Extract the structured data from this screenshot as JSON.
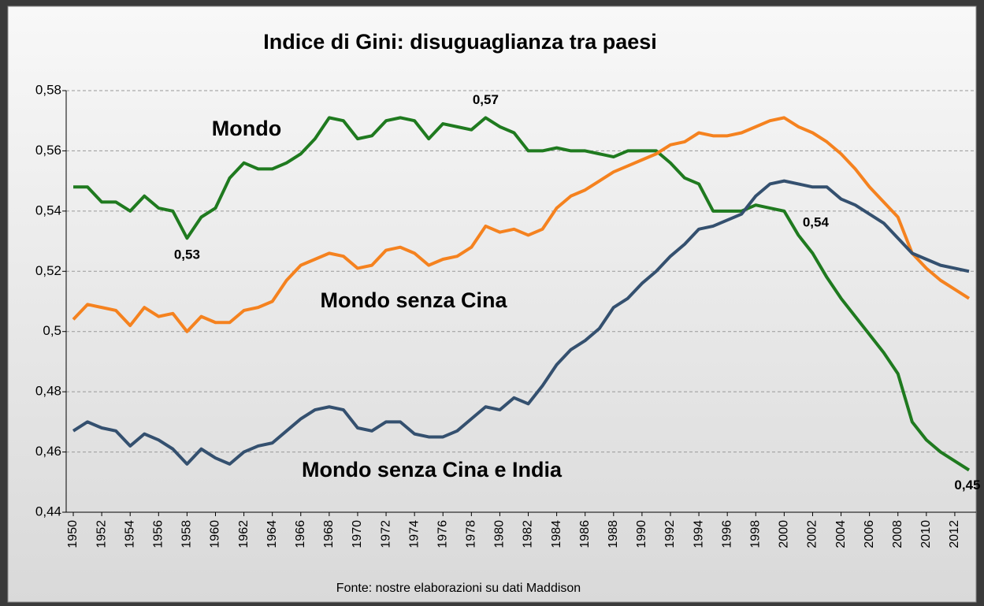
{
  "chart_data": {
    "type": "line",
    "title": "Indice di Gini: disuguaglianza tra paesi",
    "source": "Fonte:  nostre elaborazioni su dati Maddison",
    "x": [
      1950,
      1951,
      1952,
      1953,
      1954,
      1955,
      1956,
      1957,
      1958,
      1959,
      1960,
      1961,
      1962,
      1963,
      1964,
      1965,
      1966,
      1967,
      1968,
      1969,
      1970,
      1971,
      1972,
      1973,
      1974,
      1975,
      1976,
      1977,
      1978,
      1979,
      1980,
      1981,
      1982,
      1983,
      1984,
      1985,
      1986,
      1987,
      1988,
      1989,
      1990,
      1991,
      1992,
      1993,
      1994,
      1995,
      1996,
      1997,
      1998,
      1999,
      2000,
      2001,
      2002,
      2003,
      2004,
      2005,
      2006,
      2007,
      2008,
      2009,
      2010,
      2011,
      2012,
      2013
    ],
    "xlim": [
      1949.5,
      2013.5
    ],
    "xticks": [
      1950,
      1952,
      1954,
      1956,
      1958,
      1960,
      1962,
      1964,
      1966,
      1968,
      1970,
      1972,
      1974,
      1976,
      1978,
      1980,
      1982,
      1984,
      1986,
      1988,
      1990,
      1992,
      1994,
      1996,
      1998,
      2000,
      2002,
      2004,
      2006,
      2008,
      2010,
      2012
    ],
    "ylim": [
      0.44,
      0.58
    ],
    "yticks": [
      {
        "value": 0.44,
        "label": "0,44"
      },
      {
        "value": 0.46,
        "label": "0,46"
      },
      {
        "value": 0.48,
        "label": "0,48"
      },
      {
        "value": 0.5,
        "label": "0,5"
      },
      {
        "value": 0.52,
        "label": "0,52"
      },
      {
        "value": 0.54,
        "label": "0,54"
      },
      {
        "value": 0.56,
        "label": "0,56"
      },
      {
        "value": 0.58,
        "label": "0,58"
      }
    ],
    "grid": true,
    "series": [
      {
        "name": "Mondo",
        "color": "#1f7a1f",
        "values": [
          0.548,
          0.548,
          0.543,
          0.543,
          0.54,
          0.545,
          0.541,
          0.54,
          0.531,
          0.538,
          0.541,
          0.551,
          0.556,
          0.554,
          0.554,
          0.556,
          0.559,
          0.564,
          0.571,
          0.57,
          0.564,
          0.565,
          0.57,
          0.571,
          0.57,
          0.564,
          0.569,
          0.568,
          0.567,
          0.571,
          0.568,
          0.566,
          0.56,
          0.56,
          0.561,
          0.56,
          0.56,
          0.559,
          0.558,
          0.56,
          0.56,
          0.56,
          0.556,
          0.551,
          0.549,
          0.54,
          0.54,
          0.54,
          0.542,
          0.541,
          0.54,
          0.532,
          0.526,
          0.518,
          0.511,
          0.505,
          0.499,
          0.493,
          0.486,
          0.47,
          0.464,
          0.46,
          0.457,
          0.454
        ],
        "value_labels": [
          null,
          null,
          null,
          null,
          null,
          null,
          null,
          null,
          "0,53",
          null,
          null,
          null,
          null,
          null,
          null,
          null,
          null,
          null,
          null,
          null,
          null,
          null,
          null,
          null,
          null,
          null,
          null,
          null,
          null,
          "0,57",
          null,
          null,
          null,
          null,
          null,
          null,
          null,
          null,
          null,
          null,
          null,
          null,
          null,
          null,
          null,
          null,
          null,
          null,
          null,
          null,
          "0,54",
          null,
          null,
          null,
          null,
          null,
          null,
          null,
          null,
          null,
          null,
          null,
          null,
          "0,45"
        ]
      },
      {
        "name": "Mondo senza Cina",
        "color": "#f5821f",
        "values": [
          0.504,
          0.509,
          0.508,
          0.507,
          0.502,
          0.508,
          0.505,
          0.506,
          0.5,
          0.505,
          0.503,
          0.503,
          0.507,
          0.508,
          0.51,
          0.517,
          0.522,
          0.524,
          0.526,
          0.525,
          0.521,
          0.522,
          0.527,
          0.528,
          0.526,
          0.522,
          0.524,
          0.525,
          0.528,
          0.535,
          0.533,
          0.534,
          0.532,
          0.534,
          0.541,
          0.545,
          0.547,
          0.55,
          0.553,
          0.555,
          0.557,
          0.559,
          0.562,
          0.563,
          0.566,
          0.565,
          0.565,
          0.566,
          0.568,
          0.57,
          0.571,
          0.568,
          0.566,
          0.563,
          0.559,
          0.554,
          0.548,
          0.543,
          0.538,
          0.526,
          0.521,
          0.517,
          0.514,
          0.511
        ]
      },
      {
        "name": "Mondo senza Cina e India",
        "color": "#34506f",
        "values": [
          0.467,
          0.47,
          0.468,
          0.467,
          0.462,
          0.466,
          0.464,
          0.461,
          0.456,
          0.461,
          0.458,
          0.456,
          0.46,
          0.462,
          0.463,
          0.467,
          0.471,
          0.474,
          0.475,
          0.474,
          0.468,
          0.467,
          0.47,
          0.47,
          0.466,
          0.465,
          0.465,
          0.467,
          0.471,
          0.475,
          0.474,
          0.478,
          0.476,
          0.482,
          0.489,
          0.494,
          0.497,
          0.501,
          0.508,
          0.511,
          0.516,
          0.52,
          0.525,
          0.529,
          0.534,
          0.535,
          0.537,
          0.539,
          0.545,
          0.549,
          0.55,
          0.549,
          0.548,
          0.548,
          0.544,
          0.542,
          0.539,
          0.536,
          0.531,
          0.526,
          0.524,
          0.522,
          0.521,
          0.52
        ]
      }
    ]
  }
}
